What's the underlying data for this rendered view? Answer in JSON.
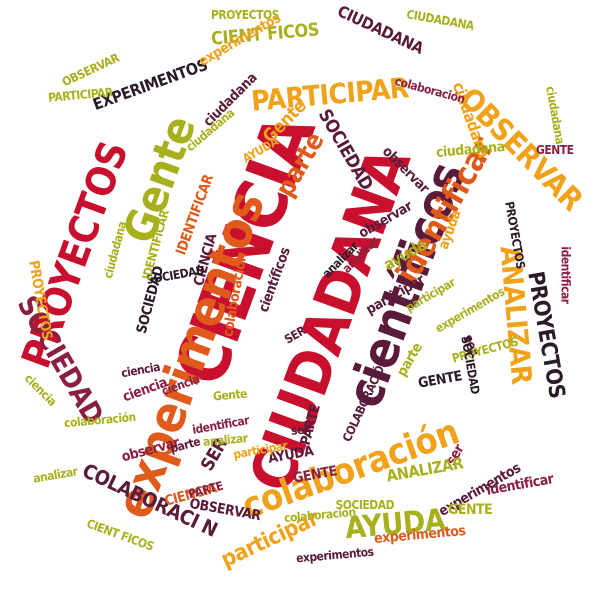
{
  "cloud": {
    "words": [
      "CIENCIA",
      "CIUDADANA",
      "científicos",
      "experimentos",
      "PROYECTOS",
      "Gente",
      "colaboración",
      "identificar",
      "OBSERVAR",
      "PARTICIPAR",
      "SOCIEDAD",
      "ANALIZAR",
      "AYUDA",
      "EXPERIMENTOS",
      "CIENT FICOS",
      "COLABORACI N",
      "participar",
      "observar",
      "ser",
      "parte",
      "Gente",
      "ciudadana",
      "ciencia",
      "SOCIEDAD",
      "analizar",
      "ayuda",
      "PROYECTOS",
      "PROYECTOS",
      "experimentos",
      "CIUDADANA",
      "colaboración",
      "GENTE",
      "SER",
      "PARTE",
      "CIENCIA",
      "CIUDADANA",
      "AYUDA",
      "ANALIZAR",
      "IDENTIFICAR",
      "observar",
      "participar",
      "experimentos",
      "SOCIEDAD",
      "ciudadana",
      "ser",
      "parte",
      "GENTE",
      "OBSERVAR",
      "colaboración",
      "ciencia",
      "identificar",
      "ciudadana",
      "analizar",
      "PARTICIPAR",
      "experimentos",
      "PROYECTOS",
      "GENTE",
      "SOCIEDAD",
      "COLABORACIÓN",
      "ayuda",
      "ciencia",
      "científicos",
      "participar",
      "ciudadana",
      "PROYECTOS",
      "CIENCIA",
      "SER",
      "PARTE",
      "observar",
      "identificar",
      "experimentos",
      "analizar",
      "Gente",
      "colaboración",
      "ciudadana",
      "SOCIEDAD",
      "AYUDA",
      "IDENTIFICAR",
      "ser",
      "ciencia",
      "PROYECTOS",
      "participar",
      "OBSERVAR",
      "CIENT FICOS",
      "GENTE",
      "analizar",
      "experimentos",
      "colaboración",
      "ciudadana",
      "SOCIEDAD",
      "identificar",
      "parte"
    ]
  }
}
